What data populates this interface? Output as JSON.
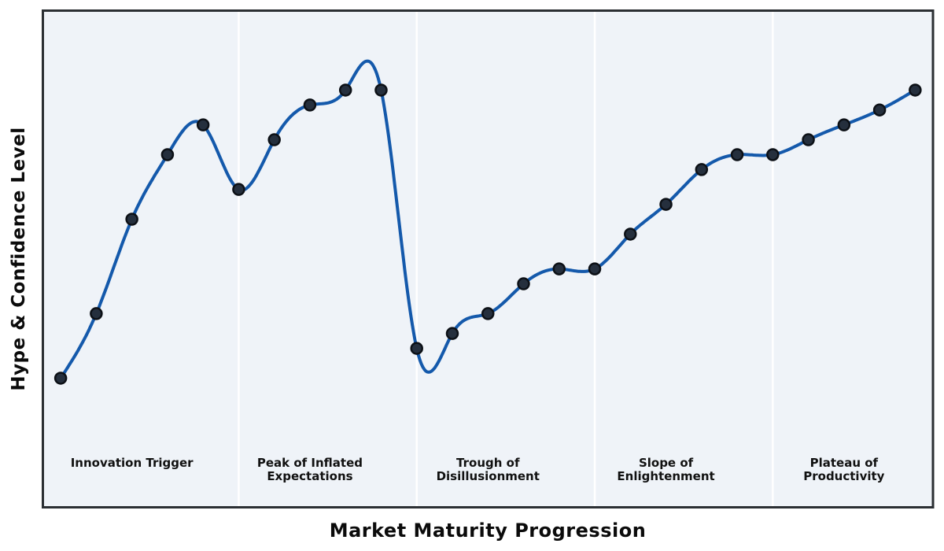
{
  "figure": {
    "background": "#ffffff",
    "plot_background": "#eff3f8",
    "border_color": "#2b2f33",
    "border_width": 3,
    "separator_color": "#ffffff",
    "separator_width": 2.5
  },
  "chart_data": {
    "type": "line",
    "title": "",
    "xlabel": "Market Maturity Progression",
    "ylabel": "Hype & Confidence Level",
    "x": [
      0,
      1,
      2,
      3,
      4,
      5,
      6,
      7,
      8,
      9,
      10,
      11,
      12,
      13,
      14,
      15,
      16,
      17,
      18,
      19,
      20,
      21,
      22,
      23,
      24
    ],
    "y": [
      26,
      39,
      58,
      71,
      77,
      64,
      74,
      81,
      84,
      84,
      32,
      35,
      39,
      45,
      48,
      48,
      55,
      61,
      68,
      71,
      71,
      74,
      77,
      80,
      84
    ],
    "xlim": [
      -0.5,
      24.5
    ],
    "ylim": [
      0,
      100
    ],
    "grid": false,
    "ticks": "none",
    "legend": null,
    "smoothing": "natural-cubic-spline",
    "line": {
      "color": "#1459ab",
      "width": 4
    },
    "marker": {
      "fill": "#252f3d",
      "edge": "#0c1016",
      "radius": 7,
      "edge_width": 2.5
    },
    "phase_boundaries_x": [
      5,
      10,
      15,
      20
    ],
    "phases": [
      {
        "id": "innovation-trigger",
        "label": "Innovation Trigger",
        "center_x": 2
      },
      {
        "id": "peak-of-inflated-expectations",
        "label": "Peak of Inflated\nExpectations",
        "center_x": 7
      },
      {
        "id": "trough-of-disillusionment",
        "label": "Trough of\nDisillusionment",
        "center_x": 12
      },
      {
        "id": "slope-of-enlightenment",
        "label": "Slope of\nEnlightenment",
        "center_x": 17
      },
      {
        "id": "plateau-of-productivity",
        "label": "Plateau of\nProductivity",
        "center_x": 22
      }
    ]
  }
}
